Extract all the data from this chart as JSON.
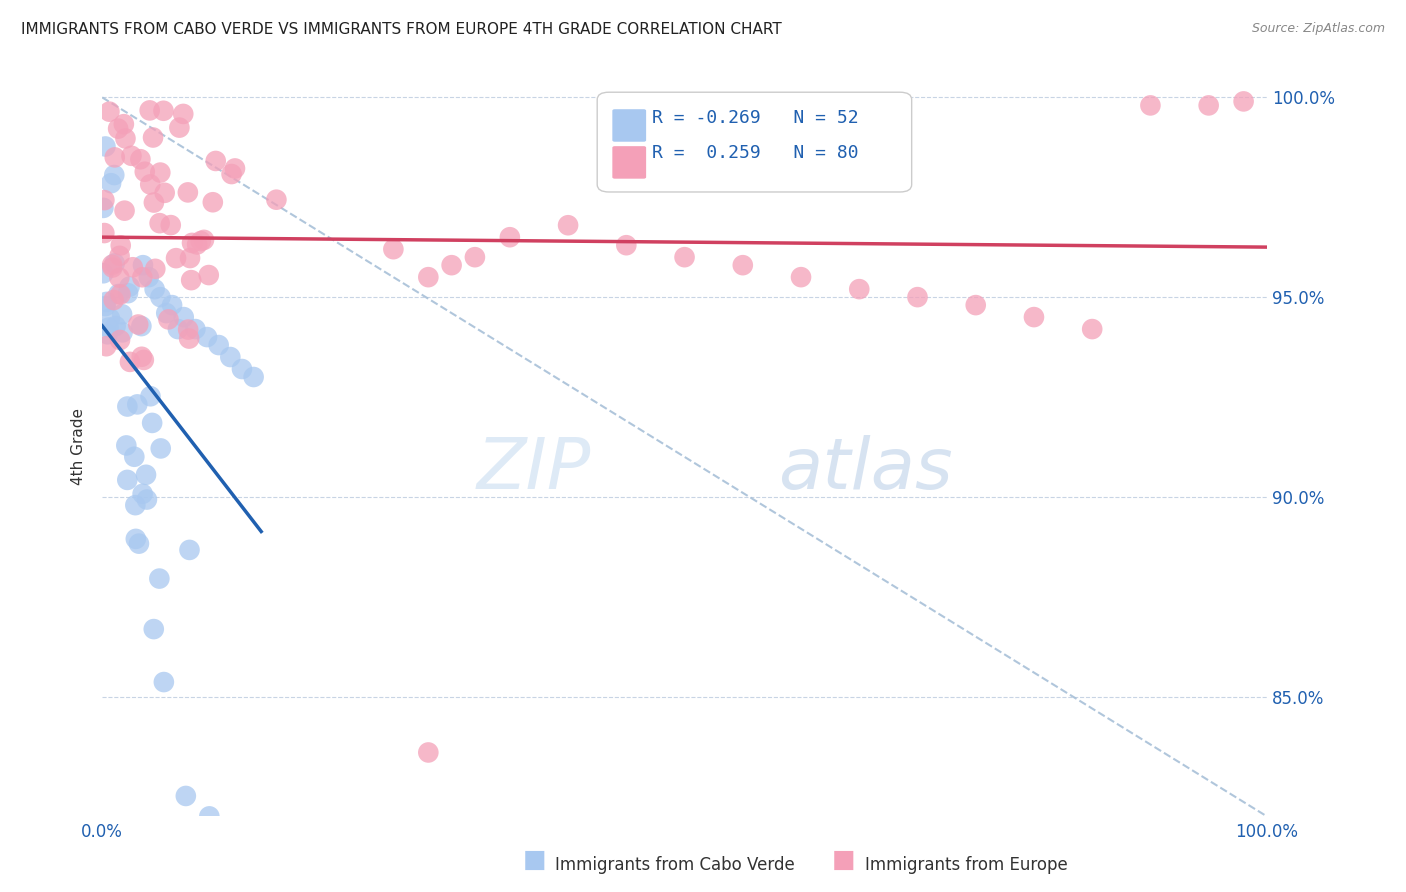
{
  "title": "IMMIGRANTS FROM CABO VERDE VS IMMIGRANTS FROM EUROPE 4TH GRADE CORRELATION CHART",
  "source": "Source: ZipAtlas.com",
  "ylabel": "4th Grade",
  "legend_entry1": "Immigrants from Cabo Verde",
  "legend_entry2": "Immigrants from Europe",
  "R1": -0.269,
  "N1": 52,
  "R2": 0.259,
  "N2": 80,
  "color_blue": "#A8C8F0",
  "color_pink": "#F4A0B8",
  "color_blue_line": "#2060B0",
  "color_pink_line": "#D04060",
  "color_diag_line": "#A8C0D8",
  "watermark_zip": "ZIP",
  "watermark_atlas": "atlas",
  "ymin": 0.82,
  "ymax": 1.005,
  "xmin": 0.0,
  "xmax": 1.0
}
